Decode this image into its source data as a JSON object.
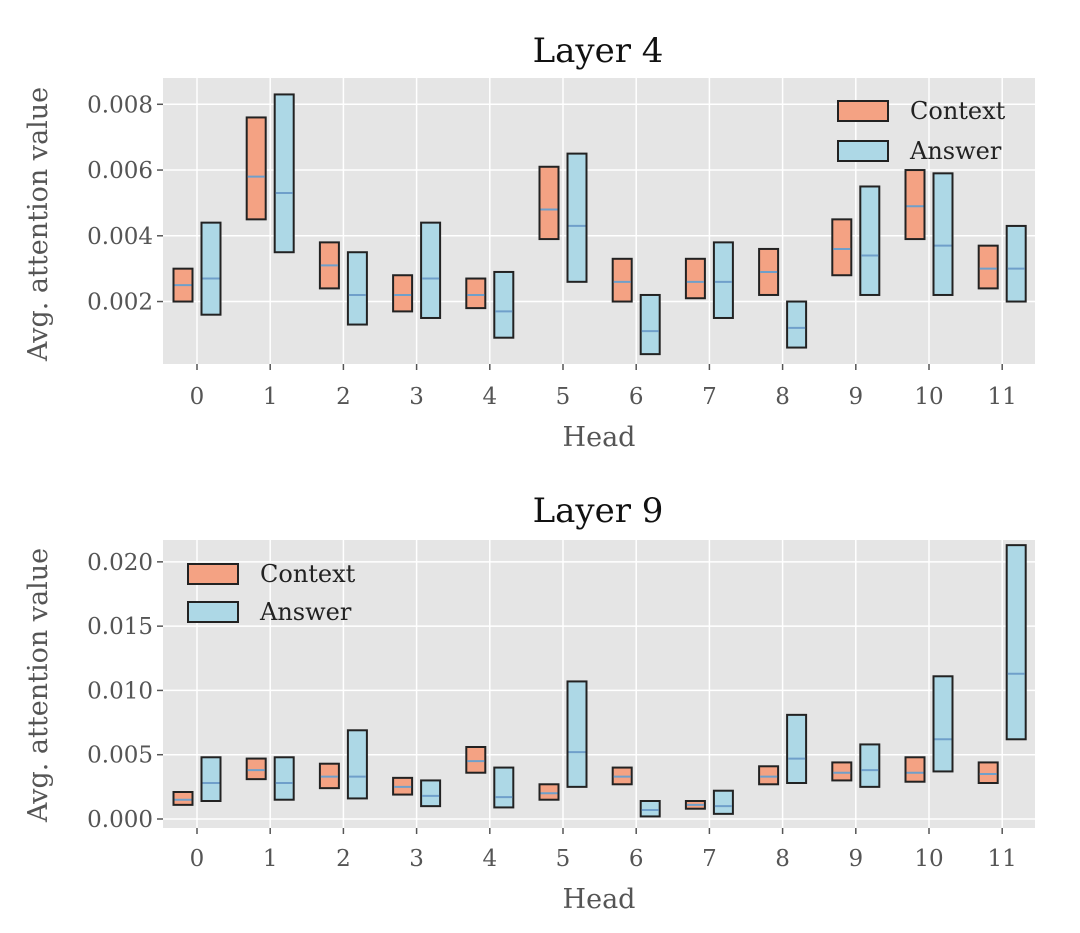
{
  "colors": {
    "panel_bg": "#e5e5e5",
    "grid": "#ffffff",
    "context": "#f4a283",
    "answer": "#add8e6",
    "median": "#6f9fca",
    "edge": "#222222"
  },
  "chart_data": [
    {
      "type": "box",
      "title": "Layer 4",
      "xlabel": "Head",
      "ylabel": "Avg. attention value",
      "categories": [
        "0",
        "1",
        "2",
        "3",
        "4",
        "5",
        "6",
        "7",
        "8",
        "9",
        "10",
        "11"
      ],
      "ylim": [
        0.0001,
        0.0088
      ],
      "yticks": [
        0.002,
        0.004,
        0.006,
        0.008
      ],
      "ytick_labels": [
        "0.002",
        "0.004",
        "0.006",
        "0.008"
      ],
      "grid": true,
      "legend_position": "top-right",
      "series": [
        {
          "name": "Context",
          "low": [
            0.002,
            0.0045,
            0.0024,
            0.0017,
            0.0018,
            0.0039,
            0.002,
            0.0021,
            0.0022,
            0.0028,
            0.0039,
            0.0024
          ],
          "median": [
            0.0025,
            0.0058,
            0.0031,
            0.0022,
            0.0022,
            0.0048,
            0.0026,
            0.0026,
            0.0029,
            0.0036,
            0.0049,
            0.003
          ],
          "high": [
            0.003,
            0.0076,
            0.0038,
            0.0028,
            0.0027,
            0.0061,
            0.0033,
            0.0033,
            0.0036,
            0.0045,
            0.006,
            0.0037
          ]
        },
        {
          "name": "Answer",
          "low": [
            0.0016,
            0.0035,
            0.0013,
            0.0015,
            0.0009,
            0.0026,
            0.0004,
            0.0015,
            0.0006,
            0.0022,
            0.0022,
            0.002
          ],
          "median": [
            0.0027,
            0.0053,
            0.0022,
            0.0027,
            0.0017,
            0.0043,
            0.0011,
            0.0026,
            0.0012,
            0.0034,
            0.0037,
            0.003
          ],
          "high": [
            0.0044,
            0.0083,
            0.0035,
            0.0044,
            0.0029,
            0.0065,
            0.0022,
            0.0038,
            0.002,
            0.0055,
            0.0059,
            0.0043
          ]
        }
      ]
    },
    {
      "type": "box",
      "title": "Layer 9",
      "xlabel": "Head",
      "ylabel": "Avg. attention value",
      "categories": [
        "0",
        "1",
        "2",
        "3",
        "4",
        "5",
        "6",
        "7",
        "8",
        "9",
        "10",
        "11"
      ],
      "ylim": [
        -0.0007,
        0.0217
      ],
      "yticks": [
        0.0,
        0.005,
        0.01,
        0.015,
        0.02
      ],
      "ytick_labels": [
        "0.000",
        "0.005",
        "0.010",
        "0.015",
        "0.020"
      ],
      "grid": true,
      "legend_position": "top-left",
      "series": [
        {
          "name": "Context",
          "low": [
            0.0011,
            0.0031,
            0.0024,
            0.0019,
            0.0036,
            0.0015,
            0.0027,
            0.0008,
            0.0027,
            0.003,
            0.0029,
            0.0028
          ],
          "median": [
            0.0015,
            0.0038,
            0.0033,
            0.0025,
            0.0045,
            0.002,
            0.0033,
            0.0011,
            0.0033,
            0.0036,
            0.0036,
            0.0035
          ],
          "high": [
            0.0021,
            0.0047,
            0.0043,
            0.0032,
            0.0056,
            0.0027,
            0.004,
            0.0014,
            0.0041,
            0.0044,
            0.0048,
            0.0044
          ]
        },
        {
          "name": "Answer",
          "low": [
            0.0014,
            0.0015,
            0.0016,
            0.001,
            0.0009,
            0.0025,
            0.0002,
            0.0004,
            0.0028,
            0.0025,
            0.0037,
            0.0062
          ],
          "median": [
            0.0028,
            0.0028,
            0.0033,
            0.0018,
            0.0017,
            0.0052,
            0.0007,
            0.001,
            0.0047,
            0.0038,
            0.0062,
            0.0113
          ],
          "high": [
            0.0048,
            0.0048,
            0.0069,
            0.003,
            0.004,
            0.0107,
            0.0014,
            0.0022,
            0.0081,
            0.0058,
            0.0111,
            0.0213
          ]
        }
      ]
    }
  ]
}
